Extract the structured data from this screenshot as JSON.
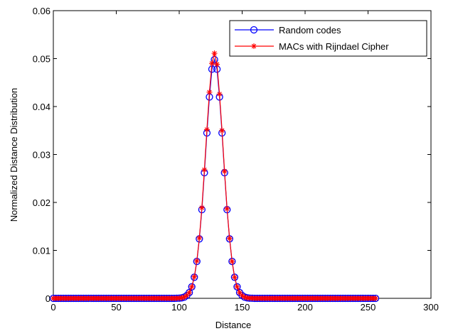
{
  "chart_data": {
    "type": "line",
    "xlabel": "Distance",
    "ylabel": "Normalized Distance Distribution",
    "xlim": [
      0,
      300
    ],
    "ylim": [
      0,
      0.06
    ],
    "xticks": [
      0,
      50,
      100,
      150,
      200,
      250,
      300
    ],
    "yticks": [
      "0",
      "0.01",
      "0.02",
      "0.03",
      "0.04",
      "0.05",
      "0.06"
    ],
    "grid": false,
    "legend_position": "top-right",
    "x": [
      0,
      2,
      4,
      6,
      8,
      10,
      12,
      14,
      16,
      18,
      20,
      22,
      24,
      26,
      28,
      30,
      32,
      34,
      36,
      38,
      40,
      42,
      44,
      46,
      48,
      50,
      52,
      54,
      56,
      58,
      60,
      62,
      64,
      66,
      68,
      70,
      72,
      74,
      76,
      78,
      80,
      82,
      84,
      86,
      88,
      90,
      92,
      94,
      96,
      98,
      100,
      102,
      104,
      106,
      108,
      110,
      112,
      114,
      116,
      118,
      120,
      122,
      124,
      126,
      128,
      130,
      132,
      134,
      136,
      138,
      140,
      142,
      144,
      146,
      148,
      150,
      152,
      154,
      156,
      158,
      160,
      162,
      164,
      166,
      168,
      170,
      172,
      174,
      176,
      178,
      180,
      182,
      184,
      186,
      188,
      190,
      192,
      194,
      196,
      198,
      200,
      202,
      204,
      206,
      208,
      210,
      212,
      214,
      216,
      218,
      220,
      222,
      224,
      226,
      228,
      230,
      232,
      234,
      236,
      238,
      240,
      242,
      244,
      246,
      248,
      250,
      252,
      254,
      256
    ],
    "series": [
      {
        "name": "Random codes",
        "color": "#0000ff",
        "marker": "circle",
        "values": [
          0,
          0,
          0,
          0,
          0,
          0,
          0,
          0,
          0,
          0,
          0,
          0,
          0,
          0,
          0,
          0,
          0,
          0,
          0,
          0,
          0,
          0,
          0,
          0,
          0,
          0,
          0,
          0,
          0,
          0,
          0,
          0,
          0,
          0,
          0,
          0,
          0,
          0,
          0,
          0,
          0,
          0,
          0,
          0,
          0,
          0,
          0,
          0,
          0,
          2e-05,
          4e-05,
          0.0001,
          0.00025,
          0.00058,
          0.0012,
          0.0024,
          0.0044,
          0.0077,
          0.0124,
          0.0185,
          0.0262,
          0.0345,
          0.042,
          0.0478,
          0.0498,
          0.0478,
          0.042,
          0.0345,
          0.0262,
          0.0185,
          0.0124,
          0.0077,
          0.0044,
          0.0024,
          0.0012,
          0.00058,
          0.00025,
          0.0001,
          4e-05,
          2e-05,
          0,
          0,
          0,
          0,
          0,
          0,
          0,
          0,
          0,
          0,
          0,
          0,
          0,
          0,
          0,
          0,
          0,
          0,
          0,
          0,
          0,
          0,
          0,
          0,
          0,
          0,
          0,
          0,
          0,
          0,
          0,
          0,
          0,
          0,
          0,
          0,
          0,
          0,
          0,
          0,
          0,
          0,
          0,
          0,
          0,
          0,
          0,
          0,
          0
        ]
      },
      {
        "name": "MACs with Rijndael Cipher",
        "color": "#ff0000",
        "marker": "star",
        "values": [
          0,
          0,
          0,
          0,
          0,
          0,
          0,
          0,
          0,
          0,
          0,
          0,
          0,
          0,
          0,
          0,
          0,
          0,
          0,
          0,
          0,
          0,
          0,
          0,
          0,
          0,
          0,
          0,
          0,
          0,
          0,
          0,
          0,
          0,
          0,
          0,
          0,
          0,
          0,
          0,
          0,
          0,
          0,
          0,
          0,
          0,
          0,
          0,
          0,
          2e-05,
          4e-05,
          0.0001,
          0.00026,
          0.0006,
          0.0012,
          0.0024,
          0.0045,
          0.0078,
          0.0126,
          0.0189,
          0.0268,
          0.0352,
          0.043,
          0.049,
          0.0511,
          0.0488,
          0.0426,
          0.035,
          0.0265,
          0.0187,
          0.0125,
          0.0077,
          0.0044,
          0.0024,
          0.0012,
          0.00058,
          0.00025,
          0.0001,
          4e-05,
          2e-05,
          0,
          0,
          0,
          0,
          0,
          0,
          0,
          0,
          0,
          0,
          0,
          0,
          0,
          0,
          0,
          0,
          0,
          0,
          0,
          0,
          0,
          0,
          0,
          0,
          0,
          0,
          0,
          0,
          0,
          0,
          0,
          0,
          0,
          0,
          0,
          0,
          0,
          0,
          0,
          0,
          0,
          0,
          0,
          0,
          0,
          0,
          0,
          0,
          0
        ]
      }
    ]
  }
}
